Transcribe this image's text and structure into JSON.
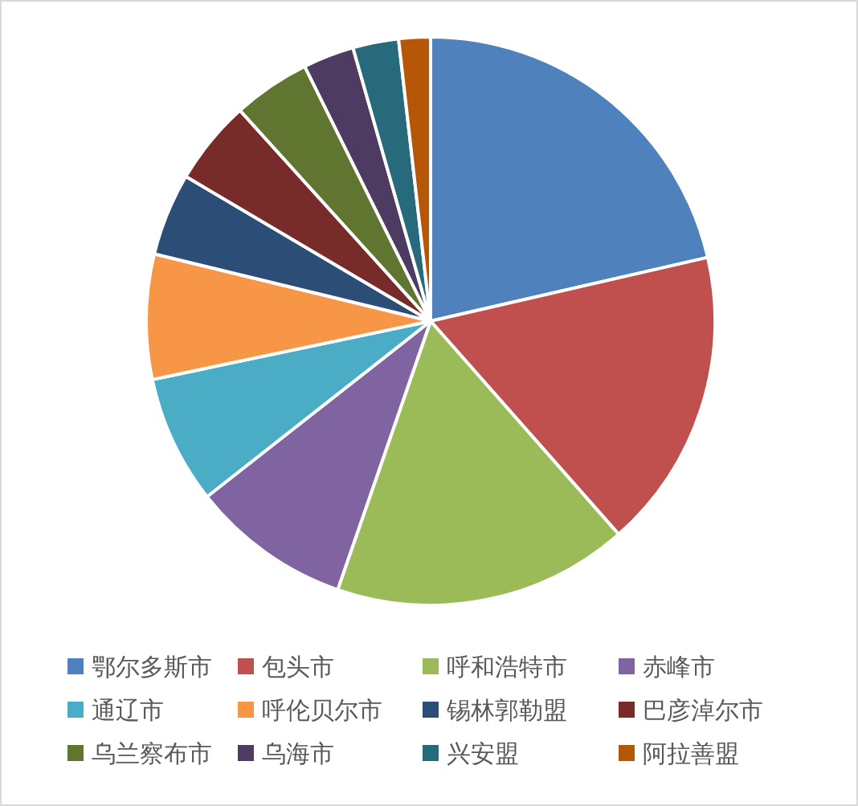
{
  "chart_data": {
    "type": "pie",
    "categories": [
      "鄂尔多斯市",
      "包头市",
      "呼和浩特市",
      "赤峰市",
      "通辽市",
      "呼伦贝尔市",
      "锡林郭勒盟",
      "巴彦淖尔市",
      "乌兰察布市",
      "乌海市",
      "兴安盟",
      "阿拉善盟"
    ],
    "values": [
      21.4,
      17.1,
      16.8,
      9.1,
      7.3,
      7.1,
      4.7,
      4.8,
      4.4,
      2.9,
      2.6,
      1.8
    ],
    "colors": [
      "#4f81bd",
      "#c0504d",
      "#9bbb59",
      "#8064a2",
      "#4bacc6",
      "#f79646",
      "#2c4d75",
      "#772c2a",
      "#5f7530",
      "#4d3b62",
      "#276a7c",
      "#b65708"
    ],
    "legend": "bottom"
  }
}
